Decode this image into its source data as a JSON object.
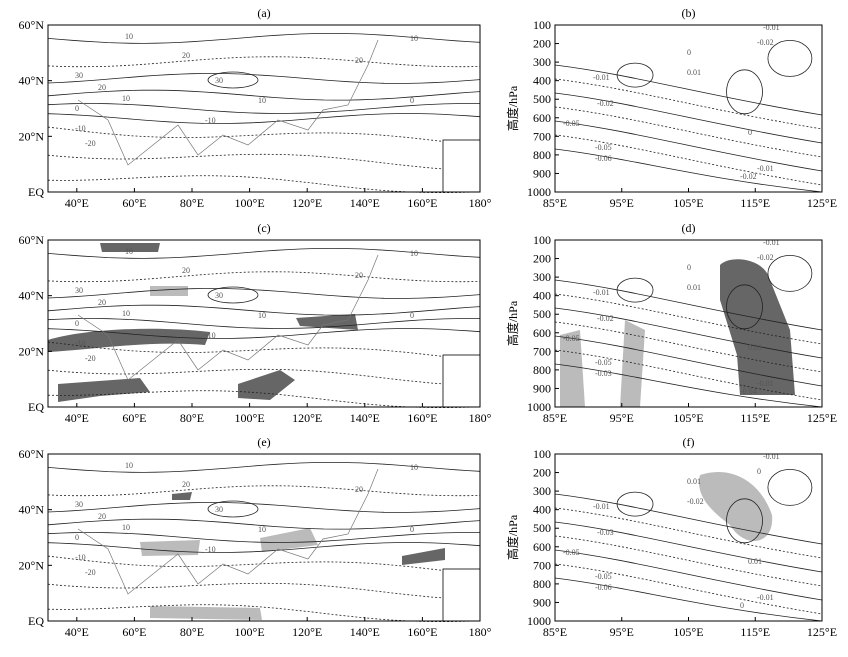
{
  "panels": [
    {
      "label": "(a)",
      "kind": "map",
      "xlim": [
        30,
        180
      ],
      "ylim": [
        0,
        60
      ],
      "xticks": [
        {
          "value": 40,
          "label": "40°E"
        },
        {
          "value": 60,
          "label": "60°E"
        },
        {
          "value": 80,
          "label": "80°E"
        },
        {
          "value": 100,
          "label": "100°E"
        },
        {
          "value": 120,
          "label": "120°E"
        },
        {
          "value": 140,
          "label": "140°E"
        },
        {
          "value": 160,
          "label": "160°E"
        },
        {
          "value": 180,
          "label": "180°"
        }
      ],
      "yticks": [
        {
          "value": 0,
          "label": "EQ"
        },
        {
          "value": 20,
          "label": "20°N"
        },
        {
          "value": 40,
          "label": "40°N"
        },
        {
          "value": 60,
          "label": "60°N"
        }
      ],
      "contour_labels": [
        "10",
        "20",
        "30",
        "30",
        "20",
        "10",
        "0",
        "-10",
        "-10",
        "-20",
        "10",
        "20",
        "10",
        "0"
      ]
    },
    {
      "label": "(b)",
      "kind": "section",
      "y_label": "高度/hPa",
      "xlim": [
        85,
        125
      ],
      "ylim": [
        1000,
        100
      ],
      "xticks": [
        {
          "value": 85,
          "label": "85°E"
        },
        {
          "value": 95,
          "label": "95°E"
        },
        {
          "value": 105,
          "label": "105°E"
        },
        {
          "value": 115,
          "label": "115°E"
        },
        {
          "value": 125,
          "label": "125°E"
        }
      ],
      "yticks": [
        100,
        200,
        300,
        400,
        500,
        600,
        700,
        800,
        900,
        1000
      ],
      "contour_labels": [
        "-0.01",
        "-0.02",
        "0",
        "0.01",
        "-0.01",
        "-0.02",
        "-0.05",
        "-0.05",
        "-0.06",
        "-0.01",
        "-0.02",
        "0"
      ]
    },
    {
      "label": "(c)",
      "kind": "map",
      "xlim": [
        30,
        180
      ],
      "ylim": [
        0,
        60
      ],
      "xticks": [
        {
          "value": 40,
          "label": "40°E"
        },
        {
          "value": 60,
          "label": "60°E"
        },
        {
          "value": 80,
          "label": "80°E"
        },
        {
          "value": 100,
          "label": "100°E"
        },
        {
          "value": 120,
          "label": "120°E"
        },
        {
          "value": 140,
          "label": "140°E"
        },
        {
          "value": 160,
          "label": "160°E"
        },
        {
          "value": 180,
          "label": "180°"
        }
      ],
      "yticks": [
        {
          "value": 0,
          "label": "EQ"
        },
        {
          "value": 20,
          "label": "20°N"
        },
        {
          "value": 40,
          "label": "40°N"
        },
        {
          "value": 60,
          "label": "60°N"
        }
      ],
      "contour_labels": [
        "10",
        "20",
        "30",
        "30",
        "20",
        "10",
        "0",
        "-10",
        "-10",
        "-20",
        "10",
        "20",
        "10",
        "0"
      ]
    },
    {
      "label": "(d)",
      "kind": "section",
      "y_label": "高度/hPa",
      "xlim": [
        85,
        125
      ],
      "ylim": [
        1000,
        100
      ],
      "xticks": [
        {
          "value": 85,
          "label": "85°E"
        },
        {
          "value": 95,
          "label": "95°E"
        },
        {
          "value": 105,
          "label": "105°E"
        },
        {
          "value": 115,
          "label": "115°E"
        },
        {
          "value": 125,
          "label": "125°E"
        }
      ],
      "yticks": [
        100,
        200,
        300,
        400,
        500,
        600,
        700,
        800,
        900,
        1000
      ],
      "contour_labels": [
        "-0.01",
        "-0.02",
        "0",
        "0.01",
        "-0.01",
        "-0.02",
        "-0.05",
        "-0.05",
        "-0.03",
        "-0.01",
        "-0.04",
        "0.01"
      ]
    },
    {
      "label": "(e)",
      "kind": "map",
      "xlim": [
        30,
        180
      ],
      "ylim": [
        0,
        60
      ],
      "xticks": [
        {
          "value": 40,
          "label": "40°E"
        },
        {
          "value": 60,
          "label": "60°E"
        },
        {
          "value": 80,
          "label": "80°E"
        },
        {
          "value": 100,
          "label": "100°E"
        },
        {
          "value": 120,
          "label": "120°E"
        },
        {
          "value": 140,
          "label": "140°E"
        },
        {
          "value": 160,
          "label": "160°E"
        },
        {
          "value": 180,
          "label": "180°"
        }
      ],
      "yticks": [
        {
          "value": 0,
          "label": "EQ"
        },
        {
          "value": 20,
          "label": "20°N"
        },
        {
          "value": 40,
          "label": "40°N"
        },
        {
          "value": 60,
          "label": "60°N"
        }
      ],
      "contour_labels": [
        "10",
        "20",
        "30",
        "30",
        "20",
        "10",
        "0",
        "-10",
        "-10",
        "-20",
        "10",
        "20",
        "10",
        "0"
      ]
    },
    {
      "label": "(f)",
      "kind": "section",
      "y_label": "高度/hPa",
      "xlim": [
        85,
        125
      ],
      "ylim": [
        1000,
        100
      ],
      "xticks": [
        {
          "value": 85,
          "label": "85°E"
        },
        {
          "value": 95,
          "label": "95°E"
        },
        {
          "value": 105,
          "label": "105°E"
        },
        {
          "value": 115,
          "label": "115°E"
        },
        {
          "value": 125,
          "label": "125°E"
        }
      ],
      "yticks": [
        100,
        200,
        300,
        400,
        500,
        600,
        700,
        800,
        900,
        1000
      ],
      "contour_labels": [
        "-0.01",
        "0",
        "0.01",
        "-0.02",
        "-0.01",
        "-0.03",
        "-0.05",
        "-0.05",
        "-0.06",
        "-0.01",
        "0",
        "0.01"
      ]
    }
  ]
}
